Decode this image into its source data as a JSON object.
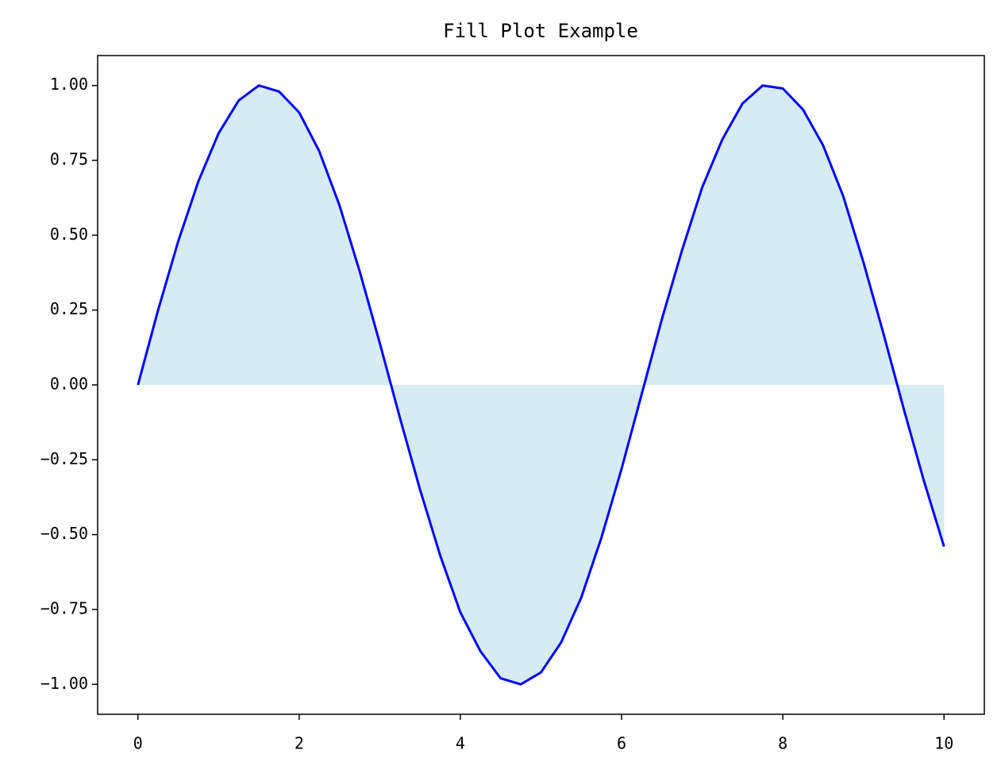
{
  "chart_data": {
    "type": "area",
    "title": "Fill Plot Example",
    "x": [
      0,
      0.25,
      0.5,
      0.75,
      1,
      1.25,
      1.5,
      1.75,
      2,
      2.25,
      2.5,
      2.75,
      3,
      3.25,
      3.5,
      3.75,
      4,
      4.25,
      4.5,
      4.75,
      5,
      5.25,
      5.5,
      5.75,
      6,
      6.25,
      6.5,
      6.75,
      7,
      7.25,
      7.5,
      7.75,
      8,
      8.25,
      8.5,
      8.75,
      9,
      9.25,
      9.5,
      9.75,
      10
    ],
    "values": [
      0,
      0.25,
      0.48,
      0.68,
      0.84,
      0.95,
      1.0,
      0.98,
      0.91,
      0.78,
      0.6,
      0.38,
      0.14,
      -0.11,
      -0.35,
      -0.57,
      -0.76,
      -0.89,
      -0.98,
      -1.0,
      -0.96,
      -0.86,
      -0.71,
      -0.51,
      -0.28,
      -0.03,
      0.22,
      0.45,
      0.66,
      0.82,
      0.94,
      1.0,
      0.99,
      0.92,
      0.8,
      0.63,
      0.41,
      0.17,
      -0.08,
      -0.32,
      -0.54
    ],
    "color": "#0000ff",
    "fill_color": "#add8e6",
    "xlim": [
      -0.5,
      10.5
    ],
    "ylim": [
      -1.1,
      1.1
    ],
    "xticks": [
      0,
      2,
      4,
      6,
      8,
      10
    ],
    "yticks": [
      {
        "value": 1,
        "label": "1.00"
      },
      {
        "value": 0.75,
        "label": "0.75"
      },
      {
        "value": 0.5,
        "label": "0.50"
      },
      {
        "value": 0.25,
        "label": "0.25"
      },
      {
        "value": 0,
        "label": "0.00"
      },
      {
        "value": -0.25,
        "label": "−0.25"
      },
      {
        "value": -0.5,
        "label": "−0.50"
      },
      {
        "value": -0.75,
        "label": "−0.75"
      },
      {
        "value": -1,
        "label": "−1.00"
      }
    ]
  }
}
